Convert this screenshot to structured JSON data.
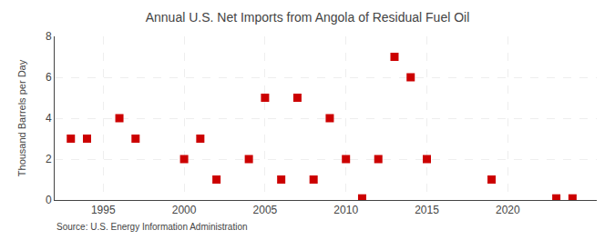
{
  "chart_data": {
    "type": "scatter",
    "title": "Annual U.S. Net Imports from Angola of Residual Fuel Oil",
    "ylabel": "Thousand Barrels per Day",
    "annotations": [
      "Source: U.S. Energy Information Administration"
    ],
    "x": [
      1993,
      1994,
      1996,
      1997,
      2000,
      2001,
      2002,
      2004,
      2005,
      2006,
      2007,
      2008,
      2009,
      2010,
      2011,
      2012,
      2013,
      2014,
      2015,
      2019,
      2023,
      2024
    ],
    "values": [
      3,
      3,
      4,
      3,
      2,
      3,
      1,
      2,
      5,
      1,
      5,
      1,
      4,
      2,
      0.08,
      2,
      7,
      6,
      2,
      1,
      0.08,
      0.08
    ],
    "color": "#cc0000",
    "marker": "square",
    "xlim": [
      1992,
      2025.5
    ],
    "xticks": [
      1995,
      2000,
      2005,
      2010,
      2015,
      2020
    ],
    "ylim": [
      0,
      8
    ],
    "yticks": [
      0,
      2,
      4,
      6,
      8
    ],
    "grid": true
  }
}
